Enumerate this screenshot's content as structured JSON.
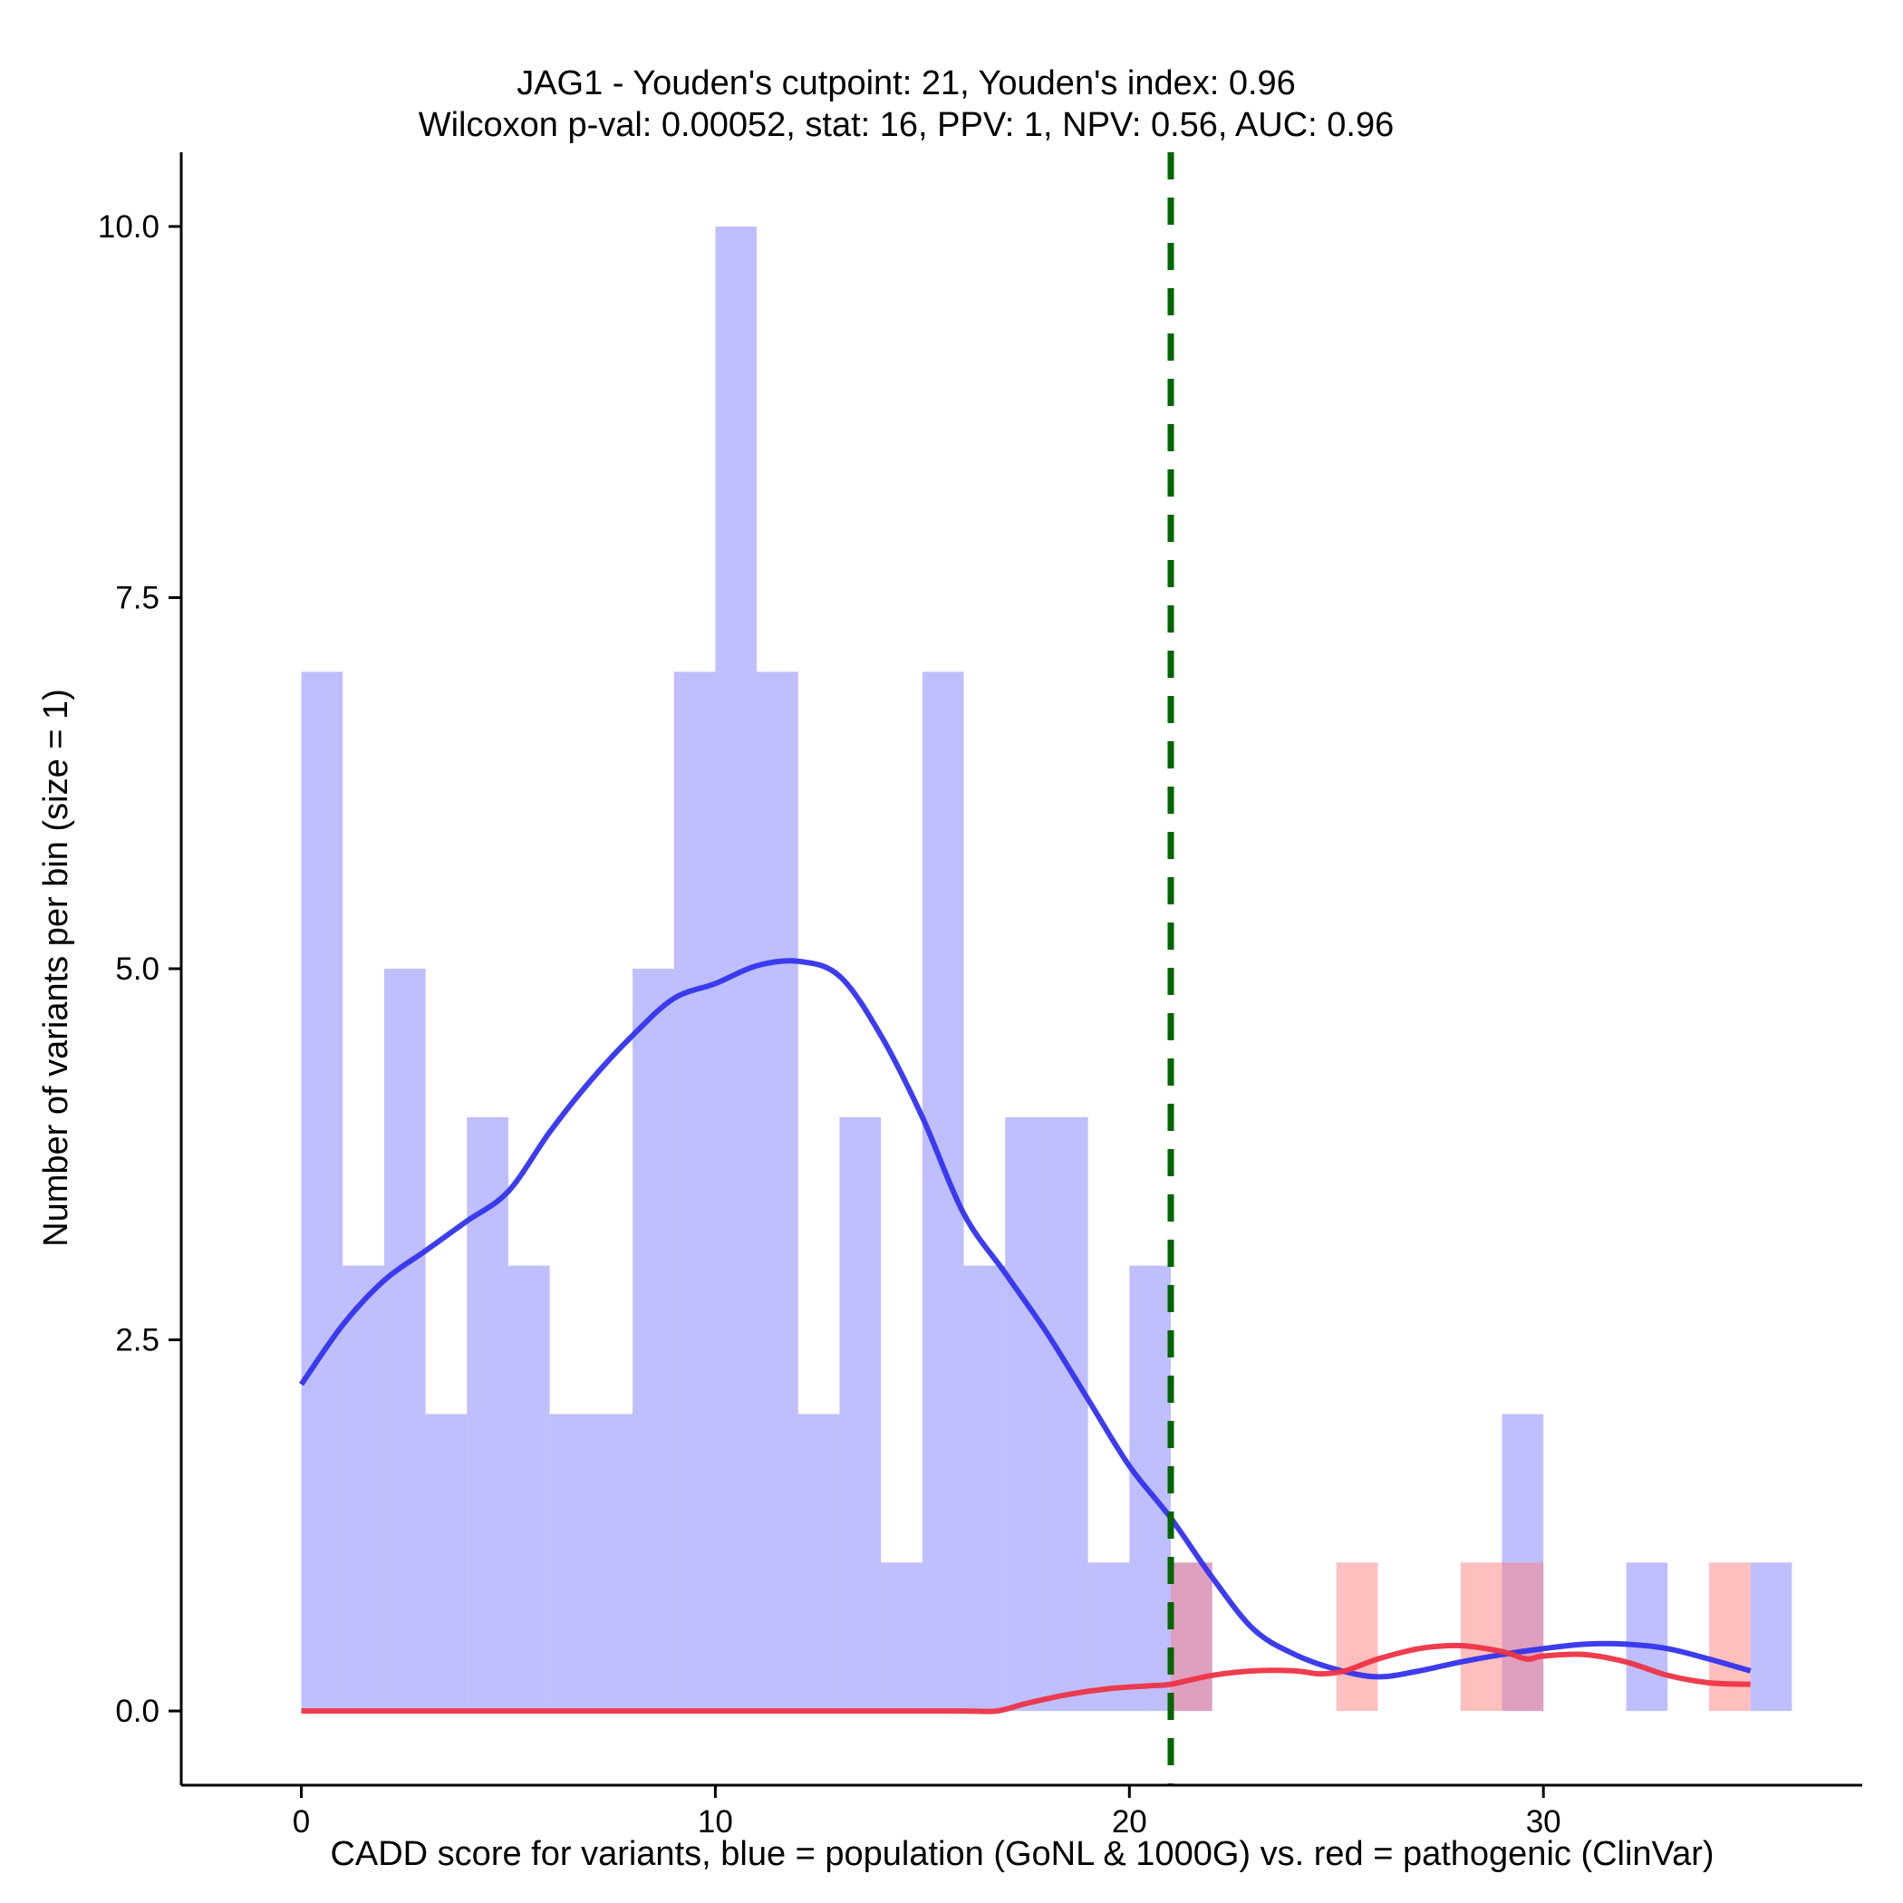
{
  "chart_data": {
    "type": "histogram",
    "title": "JAG1 - Youden's cutpoint: 21, Youden's index: 0.96",
    "subtitle": "Wilcoxon p-val: 0.00052, stat: 16, PPV: 1, NPV: 0.56, AUC: 0.96",
    "xlabel": "CADD score for variants, blue = population (GoNL & 1000G) vs. red = pathogenic (ClinVar)",
    "ylabel": "Number of variants per bin (size = 1)",
    "xlim": [
      -2.9,
      37.7
    ],
    "ylim": [
      -0.5,
      10.5
    ],
    "x_ticks": [
      0,
      10,
      20,
      30
    ],
    "x_tick_labels": [
      "0",
      "10",
      "20",
      "30"
    ],
    "y_ticks": [
      0,
      2.5,
      5,
      7.5,
      10
    ],
    "y_tick_labels": [
      "0.0",
      "2.5",
      "5.0",
      "7.5",
      "10.0"
    ],
    "bin_size": 1,
    "cutpoint": 21,
    "grid": false,
    "series": [
      {
        "name": "population (GoNL & 1000G)",
        "color": "#8080ff",
        "bins": [
          {
            "start": 0,
            "count": 7
          },
          {
            "start": 1,
            "count": 3
          },
          {
            "start": 2,
            "count": 5
          },
          {
            "start": 3,
            "count": 2
          },
          {
            "start": 4,
            "count": 4
          },
          {
            "start": 5,
            "count": 3
          },
          {
            "start": 6,
            "count": 2
          },
          {
            "start": 7,
            "count": 2
          },
          {
            "start": 8,
            "count": 5
          },
          {
            "start": 9,
            "count": 7
          },
          {
            "start": 10,
            "count": 10
          },
          {
            "start": 11,
            "count": 7
          },
          {
            "start": 12,
            "count": 2
          },
          {
            "start": 13,
            "count": 4
          },
          {
            "start": 14,
            "count": 1
          },
          {
            "start": 15,
            "count": 7
          },
          {
            "start": 16,
            "count": 3
          },
          {
            "start": 17,
            "count": 4
          },
          {
            "start": 18,
            "count": 4
          },
          {
            "start": 19,
            "count": 1
          },
          {
            "start": 20,
            "count": 3
          },
          {
            "start": 21,
            "count": 1
          },
          {
            "start": 29,
            "count": 2
          },
          {
            "start": 32,
            "count": 1
          },
          {
            "start": 35,
            "count": 1
          }
        ]
      },
      {
        "name": "pathogenic (ClinVar)",
        "color": "#ff8080",
        "bins": [
          {
            "start": 21,
            "count": 1
          },
          {
            "start": 25,
            "count": 1
          },
          {
            "start": 28,
            "count": 1
          },
          {
            "start": 29,
            "count": 1
          },
          {
            "start": 34,
            "count": 1
          }
        ]
      }
    ],
    "density_curves": [
      {
        "name": "population density (scaled)",
        "color": "#3333ee",
        "x": [
          0,
          1,
          2,
          3,
          4,
          5,
          6,
          7,
          8,
          9,
          10,
          11,
          12,
          13,
          14,
          15,
          16,
          17,
          18,
          19,
          20,
          21,
          22,
          23,
          24,
          25,
          26,
          27,
          28,
          29,
          30,
          31,
          32,
          33,
          34,
          35
        ],
        "y": [
          2.2,
          2.6,
          2.9,
          3.1,
          3.3,
          3.5,
          3.9,
          4.25,
          4.55,
          4.8,
          4.9,
          5.02,
          5.05,
          4.95,
          4.55,
          4.0,
          3.35,
          2.95,
          2.55,
          2.1,
          1.65,
          1.3,
          0.9,
          0.55,
          0.38,
          0.28,
          0.23,
          0.27,
          0.33,
          0.38,
          0.42,
          0.45,
          0.45,
          0.42,
          0.35,
          0.27
        ]
      },
      {
        "name": "pathogenic density (scaled)",
        "color": "#ee3344",
        "x": [
          0,
          1,
          2,
          3,
          4,
          5,
          6,
          7,
          8,
          9,
          10,
          11,
          12,
          13,
          14,
          15,
          16,
          16.8,
          17.5,
          18.5,
          19.5,
          20.5,
          21,
          22,
          23,
          24,
          24.6,
          25.2,
          26,
          27,
          28,
          29,
          29.6,
          30,
          31,
          32,
          33,
          34,
          35
        ],
        "y": [
          0,
          0,
          0,
          0,
          0,
          0,
          0,
          0,
          0,
          0,
          0,
          0,
          0,
          0,
          0,
          0,
          0,
          0,
          0.05,
          0.11,
          0.15,
          0.17,
          0.18,
          0.24,
          0.27,
          0.27,
          0.25,
          0.27,
          0.35,
          0.42,
          0.44,
          0.4,
          0.35,
          0.37,
          0.38,
          0.33,
          0.24,
          0.19,
          0.18
        ]
      }
    ]
  }
}
